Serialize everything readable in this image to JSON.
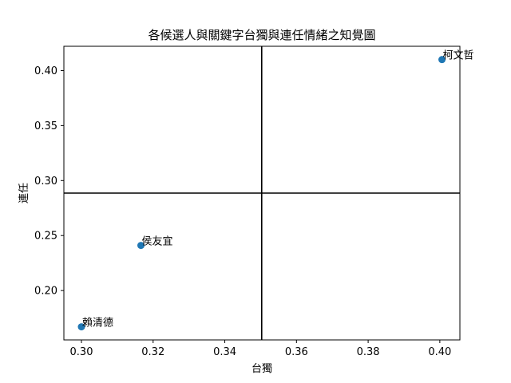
{
  "chart_data": {
    "type": "scatter",
    "title": "各候選人與關鍵字台獨與連任情緒之知覺圖",
    "xlabel": "台獨",
    "ylabel": "連任",
    "xlim": [
      0.2951,
      0.4056
    ],
    "ylim": [
      0.1551,
      0.4221
    ],
    "x_ticks": [
      0.3,
      0.32,
      0.34,
      0.36,
      0.38,
      0.4
    ],
    "x_tick_labels": [
      "0.30",
      "0.32",
      "0.34",
      "0.36",
      "0.38",
      "0.40"
    ],
    "y_ticks": [
      0.2,
      0.25,
      0.3,
      0.35,
      0.4
    ],
    "y_tick_labels": [
      "0.20",
      "0.25",
      "0.30",
      "0.35",
      "0.40"
    ],
    "reference_lines": {
      "x": 0.3503,
      "y": 0.2886
    },
    "grid": false,
    "marker_color": "#1f77b4",
    "points": [
      {
        "label": "賴清德",
        "x": 0.3,
        "y": 0.167
      },
      {
        "label": "侯友宜",
        "x": 0.3166,
        "y": 0.241
      },
      {
        "label": "柯文哲",
        "x": 0.4006,
        "y": 0.41
      }
    ]
  }
}
